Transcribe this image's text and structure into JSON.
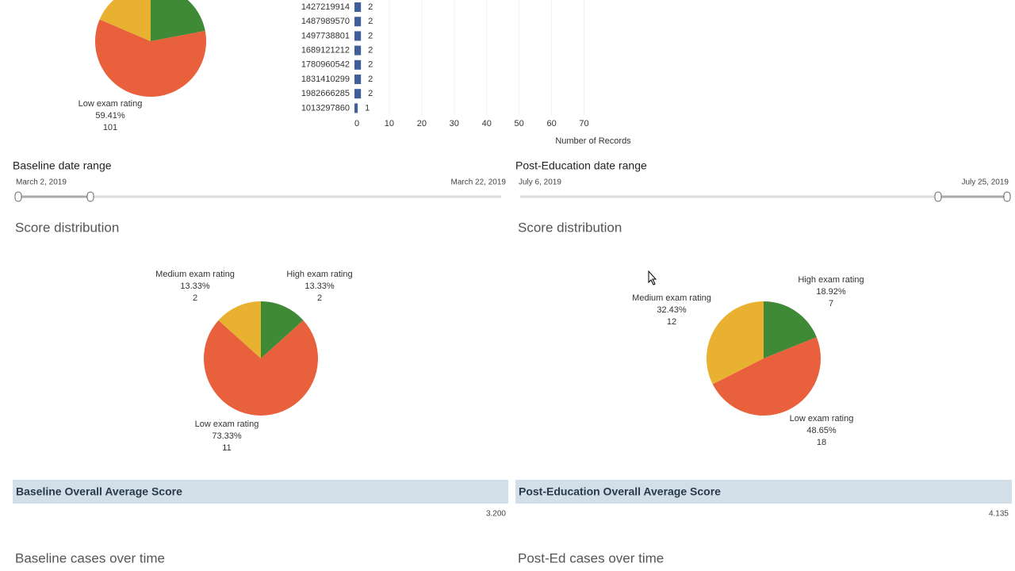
{
  "chart_data": [
    {
      "type": "barh",
      "categories": [
        "1427219914",
        "1487989570",
        "1497738801",
        "1689121212",
        "1780960542",
        "1831410299",
        "1982666285",
        "1013297860"
      ],
      "values": [
        2,
        2,
        2,
        2,
        2,
        2,
        2,
        1
      ],
      "color": "#3f5f9a",
      "xlabel": "Number of Records",
      "xlim": [
        0,
        75
      ],
      "xticks": [
        0,
        10,
        20,
        30,
        40,
        50,
        60,
        70
      ],
      "grid": true
    },
    {
      "type": "pie",
      "categories": [
        "High exam rating",
        "Low exam rating",
        "Medium exam rating"
      ],
      "names": [
        null,
        "Low exam rating",
        null
      ],
      "values": [
        22,
        59.41,
        18.59
      ],
      "value_labels": [
        null,
        "59.41%",
        null
      ],
      "counts": [
        null,
        101,
        null
      ],
      "colors": [
        "#3f8a37",
        "#e8603c",
        "#e8b130"
      ]
    },
    {
      "type": "pie",
      "categories": [
        "High exam rating",
        "Low exam rating",
        "Medium exam rating"
      ],
      "names": [
        "High exam rating",
        "Low exam rating",
        "Medium exam rating"
      ],
      "values": [
        13.33,
        73.33,
        13.33
      ],
      "value_labels": [
        "13.33%",
        "73.33%",
        "13.33%"
      ],
      "counts": [
        2,
        11,
        2
      ],
      "colors": [
        "#3f8a37",
        "#e8603c",
        "#e8b130"
      ]
    },
    {
      "type": "pie",
      "categories": [
        "High exam rating",
        "Low exam rating",
        "Medium exam rating"
      ],
      "names": [
        "High exam rating",
        "Low exam rating",
        "Medium exam rating"
      ],
      "values": [
        18.92,
        48.65,
        32.43
      ],
      "value_labels": [
        "18.92%",
        "48.65%",
        "32.43%"
      ],
      "counts": [
        7,
        18,
        12
      ],
      "colors": [
        "#3f8a37",
        "#e8603c",
        "#e8b130"
      ]
    }
  ],
  "filters": [
    {
      "title": "Baseline date range",
      "start": "March 2, 2019",
      "end": "March 22, 2019"
    },
    {
      "title": "Post-Education date range",
      "start": "July 6, 2019",
      "end": "July 25, 2019"
    }
  ],
  "sections": [
    "Score distribution",
    "Score distribution"
  ],
  "scores": [
    {
      "title": "Baseline Overall Average Score",
      "value": "3.200"
    },
    {
      "title": "Post-Education Overall Average Score",
      "value": "4.135"
    }
  ],
  "footers": [
    "Baseline cases over time",
    "Post-Ed cases over time"
  ]
}
